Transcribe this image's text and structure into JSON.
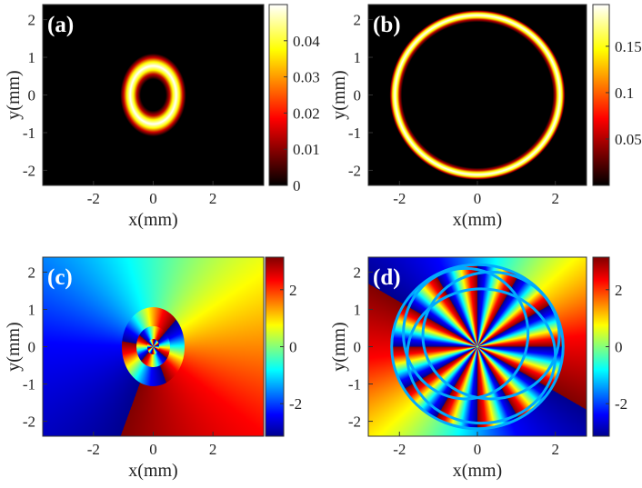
{
  "chart_data": [
    {
      "type": "heatmap",
      "label": "(a)",
      "colormap": "hot",
      "xlabel": "x(mm)",
      "ylabel": "y(mm)",
      "xlim": [
        -3.7,
        3.7
      ],
      "ylim": [
        -2.4,
        2.4
      ],
      "xticks": [
        -2,
        0,
        2
      ],
      "yticks": [
        -2,
        -1,
        0,
        1,
        2
      ],
      "colorbar": {
        "lim": [
          0,
          0.05
        ],
        "ticks": [
          0,
          0.01,
          0.02,
          0.03,
          0.04
        ]
      }
    },
    {
      "type": "heatmap",
      "label": "(b)",
      "colormap": "hot",
      "xlabel": "x(mm)",
      "ylabel": "y(mm)",
      "xlim": [
        -2.8,
        2.8
      ],
      "ylim": [
        -2.4,
        2.4
      ],
      "xticks": [
        -2,
        0,
        2
      ],
      "yticks": [
        -2,
        -1,
        0,
        1,
        2
      ],
      "colorbar": {
        "lim": [
          0,
          0.195
        ],
        "ticks": [
          0.05,
          0.1,
          0.15
        ]
      }
    },
    {
      "type": "heatmap",
      "label": "(c)",
      "colormap": "jet",
      "xlabel": "x(mm)",
      "ylabel": "y(mm)",
      "xlim": [
        -3.7,
        3.7
      ],
      "ylim": [
        -2.4,
        2.4
      ],
      "xticks": [
        -2,
        0,
        2
      ],
      "yticks": [
        -2,
        -1,
        0,
        1,
        2
      ],
      "colorbar": {
        "lim": [
          -3.1416,
          3.1416
        ],
        "ticks": [
          -2,
          0,
          2
        ]
      }
    },
    {
      "type": "heatmap",
      "label": "(d)",
      "colormap": "jet",
      "xlabel": "x(mm)",
      "ylabel": "y(mm)",
      "xlim": [
        -2.8,
        2.8
      ],
      "ylim": [
        -2.4,
        2.4
      ],
      "xticks": [
        -2,
        0,
        2
      ],
      "yticks": [
        -2,
        -1,
        0,
        1,
        2
      ],
      "colorbar": {
        "lim": [
          -3.1416,
          3.1416
        ],
        "ticks": [
          -2,
          0,
          2
        ]
      }
    }
  ]
}
